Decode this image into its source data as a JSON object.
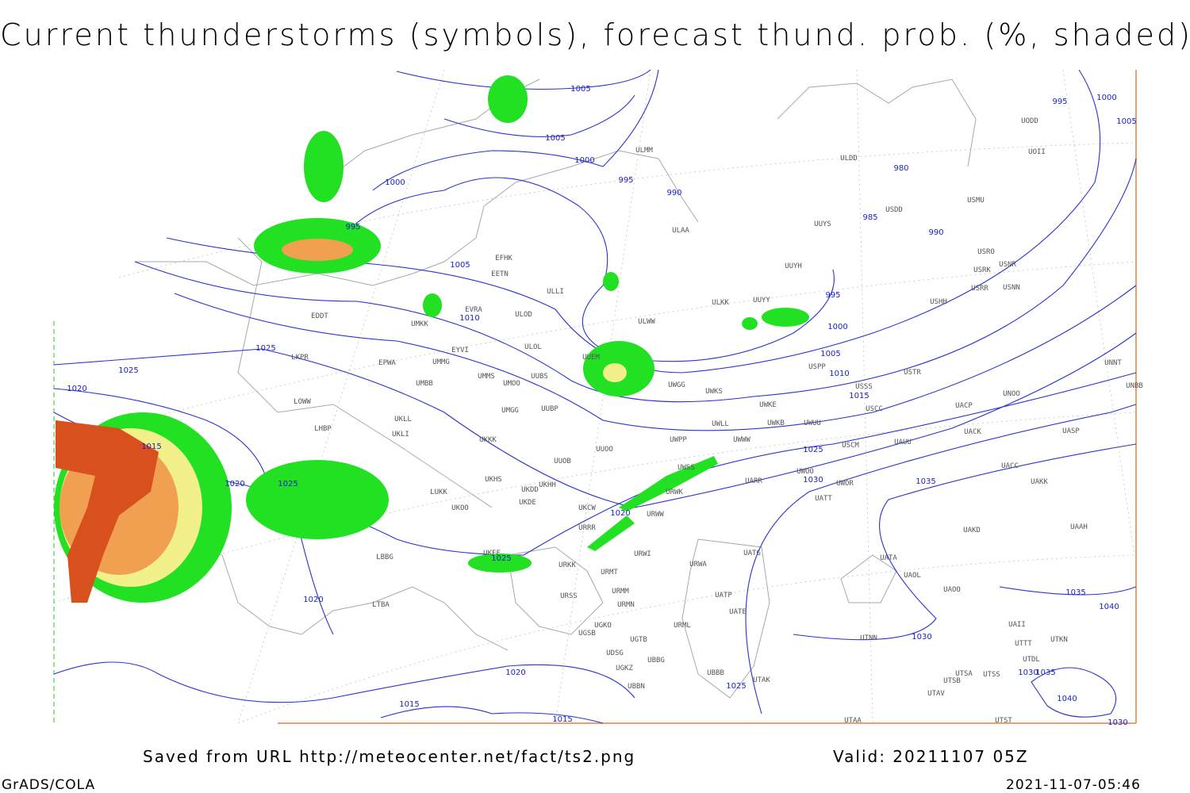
{
  "title": "Current thunderstorms (symbols), forecast thund. prob. (%, shaded)",
  "footer": {
    "saved": "Saved from URL http://meteocenter.net/fact/ts2.png",
    "valid": "Valid: 20211107 05Z",
    "software": "GrADS/COLA",
    "timestamp": "2021-11-07-05:46"
  },
  "isobar_labels": [
    1005,
    1005,
    1000,
    995,
    990,
    1000,
    995,
    1005,
    1010,
    1025,
    1025,
    1020,
    1015,
    1020,
    1025,
    1020,
    1025,
    1020,
    1020,
    1015,
    1015,
    1025,
    985,
    980,
    990,
    995,
    1000,
    1005,
    1010,
    1015,
    1025,
    1030,
    1035,
    1030,
    1035,
    1040,
    1035,
    1030,
    1040,
    1030,
    995,
    1000,
    1005
  ],
  "stations": [
    "EFHK",
    "EETN",
    "EVRA",
    "ULLI",
    "ULOD",
    "ULOL",
    "EYVI",
    "UMMG",
    "UMMS",
    "UMOO",
    "UUBS",
    "UMBB",
    "EPWA",
    "LKPR",
    "EDDT",
    "UMKK",
    "LOWW",
    "LHBP",
    "UKLL",
    "UKLI",
    "UKKK",
    "UMGG",
    "UUBP",
    "UUOO",
    "UUOB",
    "UKHS",
    "UKDD",
    "UKHH",
    "LUKK",
    "UKOO",
    "UKDE",
    "UKCW",
    "URRR",
    "UKFF",
    "LBBG",
    "URKK",
    "URWI",
    "URMT",
    "URMM",
    "URSS",
    "URMN",
    "URWA",
    "UGKO",
    "UGSB",
    "UGTB",
    "URML",
    "UDSG",
    "UBBG",
    "UBBB",
    "UBBN",
    "UGKZ",
    "LTBA",
    "UATG",
    "UATP",
    "UATE",
    "UTAK",
    "UTAA",
    "UTNN",
    "UAOL",
    "UATA",
    "UAOO",
    "UAKD",
    "UAAH",
    "UAKK",
    "UACC",
    "UASP",
    "UACK",
    "UACP",
    "UNOO",
    "UNNT",
    "UNBB",
    "USCC",
    "USSS",
    "USTR",
    "USPP",
    "UWKE",
    "UWKB",
    "UWUU",
    "UWLL",
    "UWWW",
    "UWPP",
    "UWSS",
    "UWKS",
    "UWGG",
    "UUEM",
    "URWW",
    "URWK",
    "USCM",
    "UAUU",
    "UWOO",
    "UWOR",
    "UATT",
    "UARR",
    "ULWW",
    "ULKK",
    "UUYY",
    "UUYH",
    "USHH",
    "USRR",
    "USNN",
    "USRK",
    "USNR",
    "USRO",
    "USMU",
    "USDD",
    "UUYS",
    "ULDD",
    "ULAA",
    "ULMM",
    "UODD",
    "UOII",
    "UTSA",
    "UTSB",
    "UTSS",
    "UTAV",
    "UTDL",
    "UTTT",
    "UTKN",
    "UTST",
    "UAII"
  ]
}
